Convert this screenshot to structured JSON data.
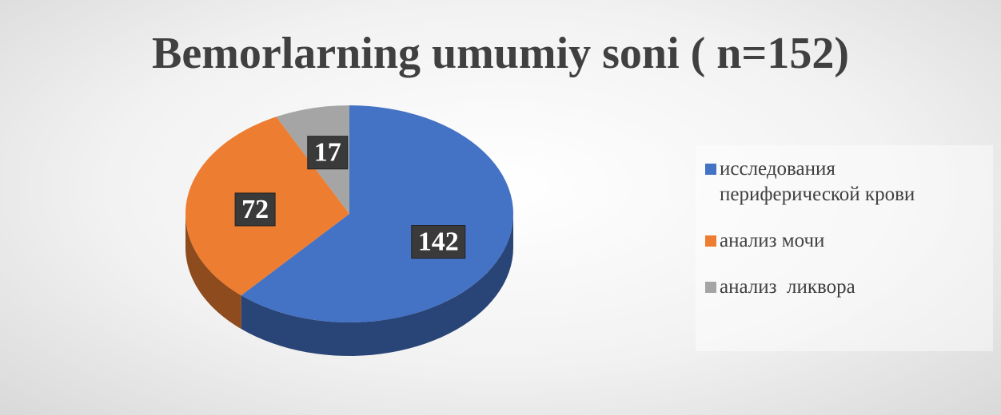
{
  "chart_data": {
    "type": "pie3d",
    "title": "Bemorlarning umumiy soni ( n=152)",
    "categories": [
      "исследования периферической крови",
      "анализ мочи",
      "анализ  ликвора"
    ],
    "values": [
      142,
      72,
      17
    ],
    "colors": [
      "#4472c4",
      "#ed7d31",
      "#a5a5a5"
    ],
    "legend": "right"
  }
}
